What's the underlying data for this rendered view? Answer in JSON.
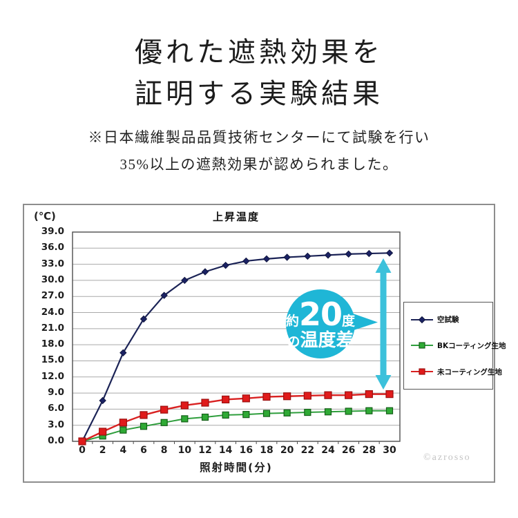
{
  "page": {
    "title_line1": "優れた遮熱効果を",
    "title_line2": "証明する実験結果",
    "subtitle_line1": "※日本繊維製品品質技術センターにて試験を行い",
    "subtitle_line2": "35%以上の遮熱効果が認められました。"
  },
  "chart_data": {
    "type": "line",
    "title": "上昇温度",
    "y_axis_unit": "(℃)",
    "xlabel": "照射時間(分)",
    "ylabel": "",
    "ylim": [
      0,
      39
    ],
    "y_tick_step": 3.0,
    "y_ticks": [
      "39.0",
      "36.0",
      "33.0",
      "30.0",
      "27.0",
      "24.0",
      "21.0",
      "18.0",
      "15.0",
      "12.0",
      "9.0",
      "6.0",
      "3.0",
      "0.0"
    ],
    "x": [
      0,
      2,
      4,
      6,
      8,
      10,
      12,
      14,
      16,
      18,
      20,
      22,
      24,
      26,
      28,
      30
    ],
    "grid": "horizontal",
    "legend_position": "right",
    "series": [
      {
        "name": "空試験",
        "line_color": "#1b2356",
        "line_width": 2.2,
        "marker": "diamond",
        "marker_fill": "#1b2264",
        "marker_stroke": "#10163f",
        "marker_size": 9,
        "values": [
          0.0,
          7.6,
          16.5,
          22.8,
          27.2,
          30.0,
          31.6,
          32.8,
          33.6,
          34.0,
          34.3,
          34.5,
          34.7,
          34.9,
          35.0,
          35.1
        ]
      },
      {
        "name": "BKコーティング生地",
        "line_color": "#2e9e3c",
        "line_width": 2.0,
        "marker": "square",
        "marker_fill": "#2faa35",
        "marker_stroke": "#145f18",
        "marker_size": 9,
        "values": [
          0.0,
          1.0,
          2.1,
          2.8,
          3.5,
          4.2,
          4.5,
          4.9,
          5.0,
          5.2,
          5.3,
          5.4,
          5.5,
          5.6,
          5.7,
          5.7
        ]
      },
      {
        "name": "未コーティング生地",
        "line_color": "#d92121",
        "line_width": 2.4,
        "marker": "square",
        "marker_fill": "#e01b1b",
        "marker_stroke": "#9c0f0f",
        "marker_size": 10,
        "values": [
          0.0,
          1.8,
          3.5,
          4.9,
          5.9,
          6.7,
          7.2,
          7.8,
          8.0,
          8.3,
          8.4,
          8.5,
          8.6,
          8.6,
          8.8,
          8.8
        ]
      }
    ]
  },
  "annotation": {
    "bubble": {
      "prefix": "約",
      "big": "20",
      "suffix": "度",
      "line2_prefix": "の",
      "line2_main": "温度差",
      "color": "#1fb6d6",
      "text_color": "#ffffff"
    },
    "arrow_color": "#3cc1db",
    "arrow_meaning": "約20度の温度差"
  },
  "watermark": "©azrosso"
}
